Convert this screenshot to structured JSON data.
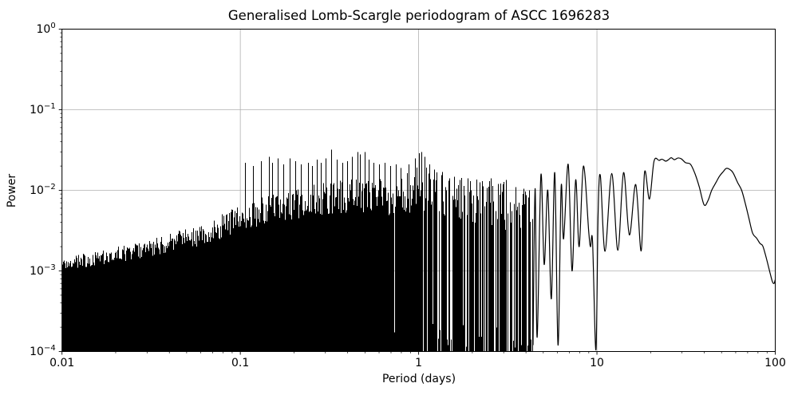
{
  "figure": {
    "background_color": "#ffffff",
    "title": "Generalised Lomb-Scargle periodogram of ASCC 1696283"
  },
  "chart_data": {
    "type": "line",
    "title": "Generalised Lomb-Scargle periodogram of ASCC 1696283",
    "xlabel": "Period (days)",
    "ylabel": "Power",
    "x_scale": "log",
    "y_scale": "log",
    "xlim": [
      0.01,
      100
    ],
    "ylim": [
      0.0001,
      1
    ],
    "grid": {
      "visible": true,
      "which": "major",
      "color": "#b0b0b0"
    },
    "legend": "none",
    "line_color": "#000000",
    "x_ticks": [
      {
        "value": 0.01,
        "label": "0.01"
      },
      {
        "value": 0.1,
        "label": "0.1"
      },
      {
        "value": 1,
        "label": "1"
      },
      {
        "value": 10,
        "label": "10"
      },
      {
        "value": 100,
        "label": "100"
      }
    ],
    "y_ticks": [
      {
        "value": 1,
        "base": "10",
        "exponent": "0"
      },
      {
        "value": 0.1,
        "base": "10",
        "exponent": "−1"
      },
      {
        "value": 0.01,
        "base": "10",
        "exponent": "−2"
      },
      {
        "value": 0.001,
        "base": "10",
        "exponent": "−3"
      },
      {
        "value": 0.0001,
        "base": "10",
        "exponent": "−4"
      }
    ],
    "dense_region": {
      "comment": "unresolved noisy periodogram mass, filled to bottom of axes",
      "x_range": [
        0.01,
        4.4
      ],
      "fill_floor": 0.0001,
      "upper_envelope": [
        [
          0.01,
          0.00135
        ],
        [
          0.02,
          0.0018
        ],
        [
          0.035,
          0.0024
        ],
        [
          0.06,
          0.0033
        ],
        [
          0.1,
          0.0055
        ],
        [
          0.15,
          0.0075
        ],
        [
          0.22,
          0.009
        ],
        [
          0.32,
          0.0105
        ],
        [
          0.5,
          0.0115
        ],
        [
          0.75,
          0.0105
        ],
        [
          1.0,
          0.015
        ],
        [
          1.3,
          0.014
        ],
        [
          1.8,
          0.011
        ],
        [
          2.5,
          0.0105
        ],
        [
          3.5,
          0.009
        ],
        [
          4.4,
          0.0095
        ]
      ],
      "spikes": [
        [
          0.107,
          0.022
        ],
        [
          0.118,
          0.02
        ],
        [
          0.131,
          0.023
        ],
        [
          0.145,
          0.026
        ],
        [
          0.152,
          0.022
        ],
        [
          0.163,
          0.025
        ],
        [
          0.175,
          0.021
        ],
        [
          0.19,
          0.025
        ],
        [
          0.205,
          0.023
        ],
        [
          0.22,
          0.021
        ],
        [
          0.24,
          0.022
        ],
        [
          0.255,
          0.02
        ],
        [
          0.27,
          0.024
        ],
        [
          0.285,
          0.022
        ],
        [
          0.302,
          0.025
        ],
        [
          0.324,
          0.032
        ],
        [
          0.35,
          0.024
        ],
        [
          0.375,
          0.022
        ],
        [
          0.4,
          0.023
        ],
        [
          0.425,
          0.026
        ],
        [
          0.455,
          0.03
        ],
        [
          0.47,
          0.028
        ],
        [
          0.5,
          0.03
        ],
        [
          0.53,
          0.024
        ],
        [
          0.56,
          0.022
        ],
        [
          0.6,
          0.021
        ],
        [
          0.65,
          0.022
        ],
        [
          0.7,
          0.02
        ],
        [
          0.75,
          0.021
        ],
        [
          0.8,
          0.019
        ],
        [
          0.88,
          0.021
        ],
        [
          0.96,
          0.025
        ],
        [
          1.01,
          0.029
        ],
        [
          1.04,
          0.03
        ],
        [
          1.08,
          0.026
        ],
        [
          1.15,
          0.021
        ],
        [
          1.23,
          0.018
        ],
        [
          1.35,
          0.0155
        ],
        [
          1.5,
          0.014
        ],
        [
          1.7,
          0.0135
        ],
        [
          1.95,
          0.013
        ],
        [
          2.2,
          0.0125
        ],
        [
          2.5,
          0.013
        ],
        [
          2.8,
          0.012
        ],
        [
          3.1,
          0.0135
        ],
        [
          3.5,
          0.011
        ],
        [
          3.9,
          0.0105
        ],
        [
          4.2,
          0.01
        ]
      ],
      "rendering": {
        "seed": 20240613,
        "top_variation_decades": [
          [
            0.01,
            0.16
          ],
          [
            0.05,
            0.25
          ],
          [
            0.1,
            0.33
          ],
          [
            0.3,
            0.4
          ],
          [
            0.6,
            0.45
          ],
          [
            1.0,
            0.55
          ],
          [
            2.0,
            0.6
          ],
          [
            4.4,
            0.62
          ]
        ],
        "null_fraction": [
          [
            0.4,
            0.0
          ],
          [
            0.7,
            0.05
          ],
          [
            1.0,
            0.12
          ],
          [
            1.5,
            0.22
          ],
          [
            2.2,
            0.32
          ],
          [
            3.2,
            0.45
          ],
          [
            4.4,
            0.55
          ]
        ]
      }
    },
    "resolved_curve": {
      "comment": "resolved oscillations and broad peaks at long periods, [period_days, power]",
      "points": [
        [
          4.38,
          0.00012
        ],
        [
          4.5,
          0.0105
        ],
        [
          4.62,
          0.00015
        ],
        [
          4.85,
          0.0155
        ],
        [
          5.06,
          0.0012
        ],
        [
          5.3,
          0.01
        ],
        [
          5.55,
          0.00045
        ],
        [
          5.8,
          0.0165
        ],
        [
          6.05,
          0.00012
        ],
        [
          6.3,
          0.011
        ],
        [
          6.5,
          0.0025
        ],
        [
          6.9,
          0.021
        ],
        [
          7.25,
          0.001
        ],
        [
          7.6,
          0.0135
        ],
        [
          7.95,
          0.002
        ],
        [
          8.4,
          0.02
        ],
        [
          9.0,
          0.003
        ],
        [
          9.2,
          0.002
        ],
        [
          9.45,
          0.0023
        ],
        [
          9.87,
          0.000105
        ],
        [
          10.15,
          0.005
        ],
        [
          10.45,
          0.0152
        ],
        [
          11.1,
          0.00175
        ],
        [
          12.1,
          0.0162
        ],
        [
          13.1,
          0.0018
        ],
        [
          14.1,
          0.0166
        ],
        [
          15.2,
          0.0028
        ],
        [
          16.5,
          0.0118
        ],
        [
          17.7,
          0.00177
        ],
        [
          18.5,
          0.0168
        ],
        [
          19.7,
          0.0078
        ],
        [
          20.9,
          0.023
        ],
        [
          22.3,
          0.0235
        ],
        [
          23.2,
          0.0243
        ],
        [
          24.3,
          0.023
        ],
        [
          25.2,
          0.024
        ],
        [
          26.1,
          0.0254
        ],
        [
          27.2,
          0.024
        ],
        [
          28.5,
          0.0252
        ],
        [
          29.8,
          0.0245
        ],
        [
          31.4,
          0.022
        ],
        [
          33.5,
          0.021
        ],
        [
          35.5,
          0.016
        ],
        [
          37.5,
          0.011
        ],
        [
          39.9,
          0.0066
        ],
        [
          42,
          0.0075
        ],
        [
          44,
          0.01
        ],
        [
          46.5,
          0.0125
        ],
        [
          48.7,
          0.015
        ],
        [
          51,
          0.017
        ],
        [
          53.1,
          0.0187
        ],
        [
          55.5,
          0.0182
        ],
        [
          58,
          0.0165
        ],
        [
          61.5,
          0.0125
        ],
        [
          64.8,
          0.01
        ],
        [
          68,
          0.0068
        ],
        [
          71,
          0.0046
        ],
        [
          74.6,
          0.00295
        ],
        [
          78.6,
          0.00255
        ],
        [
          82,
          0.0022
        ],
        [
          85,
          0.00205
        ],
        [
          88,
          0.0016
        ],
        [
          91,
          0.0012
        ],
        [
          94,
          0.0009
        ],
        [
          96.5,
          0.00073
        ],
        [
          98.5,
          0.0007
        ],
        [
          100,
          0.00078
        ]
      ]
    }
  }
}
